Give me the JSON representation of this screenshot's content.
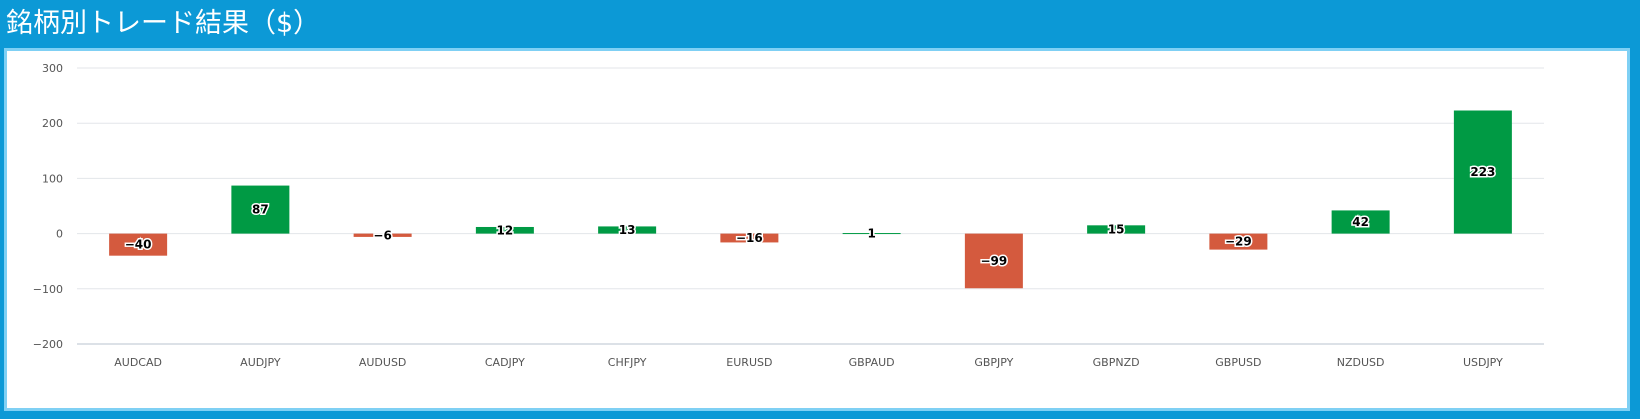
{
  "header": {
    "title": "銘柄別トレード結果（$）"
  },
  "colors": {
    "positive": "#009a44",
    "negative": "#d45a3e",
    "header_bg": "#0c99d6"
  },
  "chart_data": {
    "type": "bar",
    "title": "",
    "xlabel": "",
    "ylabel": "",
    "categories": [
      "AUDCAD",
      "AUDJPY",
      "AUDUSD",
      "CADJPY",
      "CHFJPY",
      "EURUSD",
      "GBPAUD",
      "GBPJPY",
      "GBPNZD",
      "GBPUSD",
      "NZDUSD",
      "USDJPY"
    ],
    "values": [
      -40,
      87,
      -6,
      12,
      13,
      -16,
      1,
      -99,
      15,
      -29,
      42,
      223
    ],
    "data_labels": [
      "−40",
      "87",
      "−6",
      "12",
      "13",
      "−16",
      "1",
      "−99",
      "15",
      "−29",
      "42",
      "223"
    ],
    "ylim": [
      -200,
      300
    ],
    "y_ticks": [
      300,
      200,
      100,
      0,
      -100,
      -200
    ],
    "y_tick_labels": [
      "300",
      "200",
      "100",
      "0",
      "−100",
      "−200"
    ],
    "grid": true,
    "legend": "none"
  }
}
